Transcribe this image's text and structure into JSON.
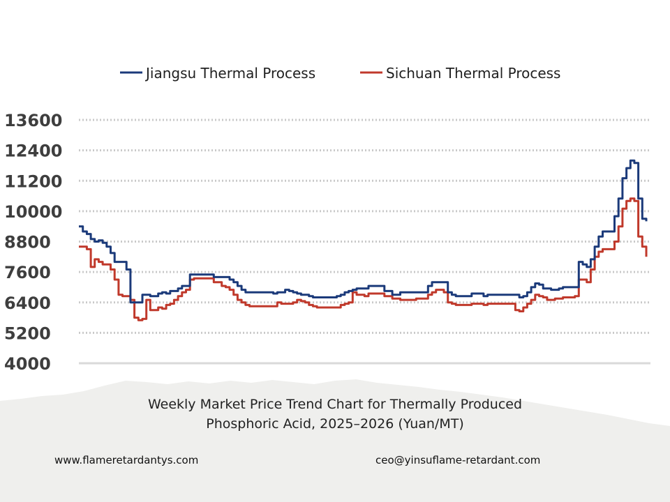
{
  "chart_data": {
    "type": "line",
    "title": "Weekly Market Price Trend Chart for Thermally Produced Phosphoric Acid, 2025–2026 (Yuan/MT)",
    "title_lines": [
      "Weekly Market Price Trend Chart for Thermally Produced",
      "Phosphoric Acid, 2025–2026 (Yuan/MT)"
    ],
    "ylim": [
      4000,
      13600
    ],
    "yticks": [
      "13600",
      "12400",
      "11200",
      "10000",
      "8800",
      "7600",
      "6400",
      "5200",
      "4000"
    ],
    "grid": true,
    "legend_position": "top",
    "series": [
      {
        "name": "Jiangsu Thermal Process",
        "color": "#1b3a7a",
        "values": [
          9400,
          9200,
          9100,
          8900,
          8800,
          8850,
          8750,
          8600,
          8350,
          8000,
          8000,
          8000,
          7700,
          6400,
          6400,
          6400,
          6700,
          6700,
          6650,
          6650,
          6750,
          6800,
          6750,
          6850,
          6850,
          6950,
          7050,
          7050,
          7500,
          7500,
          7500,
          7500,
          7500,
          7500,
          7400,
          7400,
          7400,
          7400,
          7300,
          7200,
          7050,
          6900,
          6800,
          6800,
          6800,
          6800,
          6800,
          6800,
          6800,
          6750,
          6800,
          6800,
          6900,
          6850,
          6800,
          6750,
          6700,
          6700,
          6650,
          6600,
          6600,
          6600,
          6600,
          6600,
          6600,
          6650,
          6700,
          6800,
          6850,
          6900,
          6950,
          6950,
          6950,
          7050,
          7050,
          7050,
          7050,
          6850,
          6850,
          6700,
          6700,
          6800,
          6800,
          6800,
          6800,
          6800,
          6800,
          6800,
          7050,
          7200,
          7200,
          7200,
          7200,
          6800,
          6700,
          6650,
          6650,
          6650,
          6650,
          6750,
          6750,
          6750,
          6650,
          6700,
          6700,
          6700,
          6700,
          6700,
          6700,
          6700,
          6700,
          6600,
          6650,
          6800,
          7000,
          7150,
          7100,
          6950,
          6950,
          6900,
          6900,
          6950,
          7000,
          7000,
          7000,
          7000,
          8000,
          7900,
          7800,
          8100,
          8600,
          9000,
          9200,
          9200,
          9200,
          9800,
          10500,
          11300,
          11700,
          12000,
          11900,
          10500,
          9700,
          9600
        ]
      },
      {
        "name": "Sichuan Thermal Process",
        "color": "#c0392b",
        "values": [
          8600,
          8600,
          8500,
          7800,
          8100,
          8000,
          7900,
          7900,
          7700,
          7300,
          6700,
          6650,
          6650,
          6500,
          5800,
          5700,
          5750,
          6500,
          6100,
          6100,
          6200,
          6150,
          6300,
          6350,
          6500,
          6650,
          6800,
          6900,
          7300,
          7350,
          7350,
          7350,
          7350,
          7350,
          7200,
          7200,
          7050,
          7000,
          6900,
          6700,
          6500,
          6400,
          6300,
          6250,
          6250,
          6250,
          6250,
          6250,
          6250,
          6250,
          6400,
          6350,
          6350,
          6350,
          6400,
          6500,
          6450,
          6400,
          6300,
          6250,
          6200,
          6200,
          6200,
          6200,
          6200,
          6200,
          6300,
          6350,
          6400,
          6800,
          6700,
          6700,
          6650,
          6750,
          6750,
          6750,
          6750,
          6650,
          6650,
          6550,
          6550,
          6500,
          6500,
          6500,
          6500,
          6550,
          6550,
          6550,
          6700,
          6800,
          6900,
          6900,
          6800,
          6400,
          6350,
          6300,
          6300,
          6300,
          6300,
          6350,
          6350,
          6350,
          6300,
          6350,
          6350,
          6350,
          6350,
          6350,
          6350,
          6350,
          6100,
          6050,
          6200,
          6350,
          6500,
          6700,
          6650,
          6600,
          6500,
          6500,
          6550,
          6550,
          6600,
          6600,
          6600,
          6650,
          7300,
          7300,
          7200,
          7700,
          8200,
          8400,
          8500,
          8500,
          8500,
          8800,
          9400,
          10100,
          10400,
          10500,
          10400,
          9000,
          8600,
          8200
        ]
      }
    ]
  },
  "footer": {
    "website": "www.flameretardantys.com",
    "email": "ceo@yinsuflame-retardant.com"
  },
  "colors": {
    "grid": "#c9c9c9",
    "axis": "#d9d9d9",
    "background_bottom": "#efefed"
  }
}
